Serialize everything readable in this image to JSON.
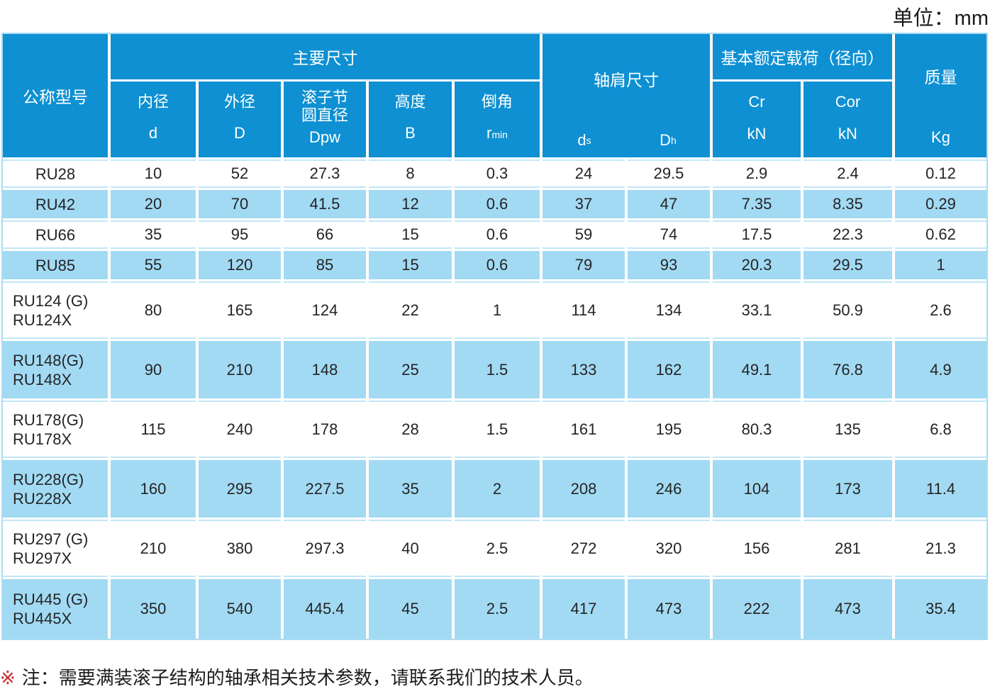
{
  "unit_label": "单位：mm",
  "colors": {
    "header_blue": "#0e90d2",
    "row_blue": "#a2daf4",
    "outer_border_blue": "#a9dcf4",
    "hairline_blue": "#c2e6f8",
    "note_marker_red": "#c4282b",
    "header_text": "#ffffff",
    "body_text": "#242424"
  },
  "header": {
    "model_label": "公称型号",
    "main_dims_title": "主要尺寸",
    "sub_columns": [
      {
        "name_line1": "内径",
        "name_line2": "",
        "symbol": "d",
        "symbol_sub": ""
      },
      {
        "name_line1": "外径",
        "name_line2": "",
        "symbol": "D",
        "symbol_sub": ""
      },
      {
        "name_line1": "滚子节",
        "name_line2": "圆直径",
        "symbol": "Dpw",
        "symbol_sub": ""
      },
      {
        "name_line1": "高度",
        "name_line2": "",
        "symbol": "B",
        "symbol_sub": ""
      },
      {
        "name_line1": "倒角",
        "name_line2": "",
        "symbol": "r",
        "symbol_sub": "min"
      }
    ],
    "shoulder": {
      "title": "轴肩尺寸",
      "col1_symbol": "d",
      "col1_sub": "s",
      "col2_symbol": "D",
      "col2_sub": "h"
    },
    "load": {
      "title": "基本额定载荷（径向）",
      "col1_name": "Cr",
      "col1_unit": "kN",
      "col2_name": "Cor",
      "col2_unit": "kN"
    },
    "mass": {
      "title": "质量",
      "unit": "Kg"
    }
  },
  "rows": [
    {
      "model_lines": [
        "RU28"
      ],
      "values": [
        "10",
        "52",
        "27.3",
        "8",
        "0.3",
        "24",
        "29.5",
        "2.9",
        "2.4",
        "0.12"
      ]
    },
    {
      "model_lines": [
        "RU42"
      ],
      "values": [
        "20",
        "70",
        "41.5",
        "12",
        "0.6",
        "37",
        "47",
        "7.35",
        "8.35",
        "0.29"
      ]
    },
    {
      "model_lines": [
        "RU66"
      ],
      "values": [
        "35",
        "95",
        "66",
        "15",
        "0.6",
        "59",
        "74",
        "17.5",
        "22.3",
        "0.62"
      ]
    },
    {
      "model_lines": [
        "RU85"
      ],
      "values": [
        "55",
        "120",
        "85",
        "15",
        "0.6",
        "79",
        "93",
        "20.3",
        "29.5",
        "1"
      ]
    },
    {
      "model_lines": [
        "RU124 (G)",
        "RU124X"
      ],
      "values": [
        "80",
        "165",
        "124",
        "22",
        "1",
        "114",
        "134",
        "33.1",
        "50.9",
        "2.6"
      ]
    },
    {
      "model_lines": [
        "RU148(G)",
        "RU148X"
      ],
      "values": [
        "90",
        "210",
        "148",
        "25",
        "1.5",
        "133",
        "162",
        "49.1",
        "76.8",
        "4.9"
      ]
    },
    {
      "model_lines": [
        "RU178(G)",
        "RU178X"
      ],
      "values": [
        "115",
        "240",
        "178",
        "28",
        "1.5",
        "161",
        "195",
        "80.3",
        "135",
        "6.8"
      ]
    },
    {
      "model_lines": [
        "RU228(G)",
        "RU228X"
      ],
      "values": [
        "160",
        "295",
        "227.5",
        "35",
        "2",
        "208",
        "246",
        "104",
        "173",
        "11.4"
      ]
    },
    {
      "model_lines": [
        "RU297 (G)",
        "RU297X"
      ],
      "values": [
        "210",
        "380",
        "297.3",
        "40",
        "2.5",
        "272",
        "320",
        "156",
        "281",
        "21.3"
      ]
    },
    {
      "model_lines": [
        "RU445 (G)",
        "RU445X"
      ],
      "values": [
        "350",
        "540",
        "445.4",
        "45",
        "2.5",
        "417",
        "473",
        "222",
        "473",
        "35.4"
      ]
    }
  ],
  "note": {
    "marker": "※",
    "text": "注：需要满装滚子结构的轴承相关技术参数，请联系我们的技术人员。"
  }
}
